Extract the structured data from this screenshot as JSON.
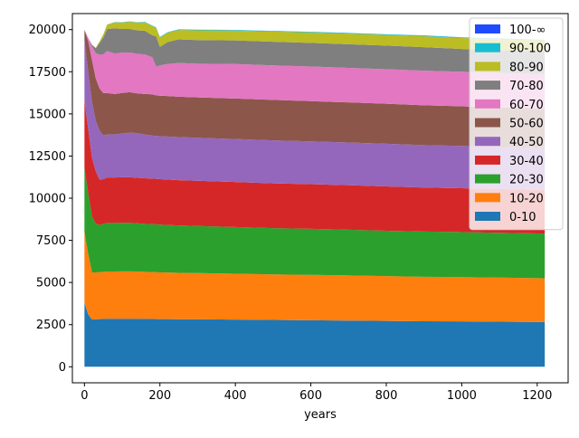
{
  "chart_data": {
    "type": "area",
    "title": "",
    "xlabel": "years",
    "ylabel": "",
    "xlim": [
      -32,
      1282
    ],
    "ylim": [
      -950,
      20950
    ],
    "xticks": [
      0,
      200,
      400,
      600,
      800,
      1000,
      1200
    ],
    "yticks": [
      0,
      2500,
      5000,
      7500,
      10000,
      12500,
      15000,
      17500,
      20000
    ],
    "legend_position": "top-right",
    "grid": false,
    "x": [
      0,
      10,
      20,
      30,
      40,
      50,
      60,
      80,
      100,
      120,
      140,
      160,
      180,
      190,
      200,
      220,
      250,
      300,
      400,
      500,
      600,
      700,
      800,
      900,
      1000,
      1100,
      1220
    ],
    "series": [
      {
        "name": "0-10",
        "color": "#1f77b4",
        "values": [
          3800,
          3100,
          2800,
          2820,
          2830,
          2840,
          2850,
          2850,
          2850,
          2850,
          2850,
          2840,
          2840,
          2830,
          2830,
          2830,
          2820,
          2820,
          2800,
          2780,
          2760,
          2740,
          2720,
          2700,
          2690,
          2670,
          2650
        ]
      },
      {
        "name": "10-20",
        "color": "#ff7f0e",
        "values": [
          4200,
          3600,
          2800,
          2780,
          2780,
          2790,
          2800,
          2800,
          2810,
          2810,
          2800,
          2790,
          2780,
          2780,
          2770,
          2760,
          2750,
          2740,
          2720,
          2700,
          2690,
          2680,
          2660,
          2640,
          2630,
          2620,
          2600
        ]
      },
      {
        "name": "20-30",
        "color": "#2ca02c",
        "values": [
          3800,
          3600,
          3300,
          2900,
          2800,
          2850,
          2880,
          2880,
          2880,
          2880,
          2860,
          2850,
          2840,
          2840,
          2830,
          2820,
          2810,
          2790,
          2770,
          2740,
          2730,
          2710,
          2690,
          2680,
          2670,
          2660,
          2650
        ]
      },
      {
        "name": "30-40",
        "color": "#d62728",
        "values": [
          4000,
          3800,
          3500,
          3100,
          2700,
          2650,
          2700,
          2700,
          2700,
          2700,
          2700,
          2700,
          2700,
          2700,
          2700,
          2700,
          2690,
          2680,
          2670,
          2660,
          2650,
          2640,
          2630,
          2610,
          2600,
          2590,
          2580
        ]
      },
      {
        "name": "40-50",
        "color": "#9467bd",
        "values": [
          3600,
          3400,
          3300,
          3000,
          2900,
          2600,
          2550,
          2550,
          2600,
          2650,
          2650,
          2600,
          2550,
          2550,
          2550,
          2550,
          2550,
          2550,
          2550,
          2550,
          2540,
          2530,
          2530,
          2520,
          2510,
          2500,
          2500
        ]
      },
      {
        "name": "50-60",
        "color": "#8c564b",
        "values": [
          600,
          1800,
          2500,
          2500,
          2500,
          2500,
          2450,
          2400,
          2400,
          2400,
          2350,
          2400,
          2450,
          2400,
          2400,
          2400,
          2400,
          2400,
          2400,
          2400,
          2390,
          2380,
          2370,
          2360,
          2350,
          2340,
          2330
        ]
      },
      {
        "name": "60-70",
        "color": "#e377c2",
        "values": [
          0,
          200,
          800,
          1500,
          2000,
          2300,
          2500,
          2400,
          2400,
          2350,
          2350,
          2350,
          2200,
          1700,
          1800,
          1900,
          2000,
          2000,
          2050,
          2050,
          2050,
          2050,
          2050,
          2050,
          2050,
          2050,
          2050
        ]
      },
      {
        "name": "70-80",
        "color": "#7f7f7f",
        "values": [
          0,
          0,
          100,
          300,
          700,
          1000,
          1300,
          1500,
          1400,
          1400,
          1400,
          1400,
          1300,
          1800,
          1100,
          1300,
          1400,
          1400,
          1400,
          1400,
          1400,
          1400,
          1400,
          1400,
          1350,
          1350,
          1350
        ]
      },
      {
        "name": "80-90",
        "color": "#bcbd22",
        "values": [
          0,
          0,
          0,
          20,
          80,
          180,
          260,
          350,
          380,
          420,
          450,
          500,
          550,
          500,
          550,
          550,
          560,
          580,
          580,
          600,
          620,
          630,
          630,
          650,
          650,
          650,
          650
        ]
      },
      {
        "name": "90-100",
        "color": "#17becf",
        "values": [
          0,
          0,
          0,
          0,
          0,
          5,
          10,
          15,
          20,
          25,
          25,
          30,
          30,
          30,
          30,
          30,
          35,
          35,
          35,
          40,
          40,
          40,
          40,
          40,
          40,
          40,
          40
        ]
      },
      {
        "name": "100-∞",
        "color": "#1f4bff",
        "values": [
          0,
          0,
          0,
          0,
          0,
          0,
          0,
          0,
          0,
          0,
          0,
          2,
          2,
          2,
          2,
          2,
          3,
          3,
          3,
          3,
          3,
          3,
          3,
          3,
          3,
          3,
          3
        ]
      }
    ]
  }
}
